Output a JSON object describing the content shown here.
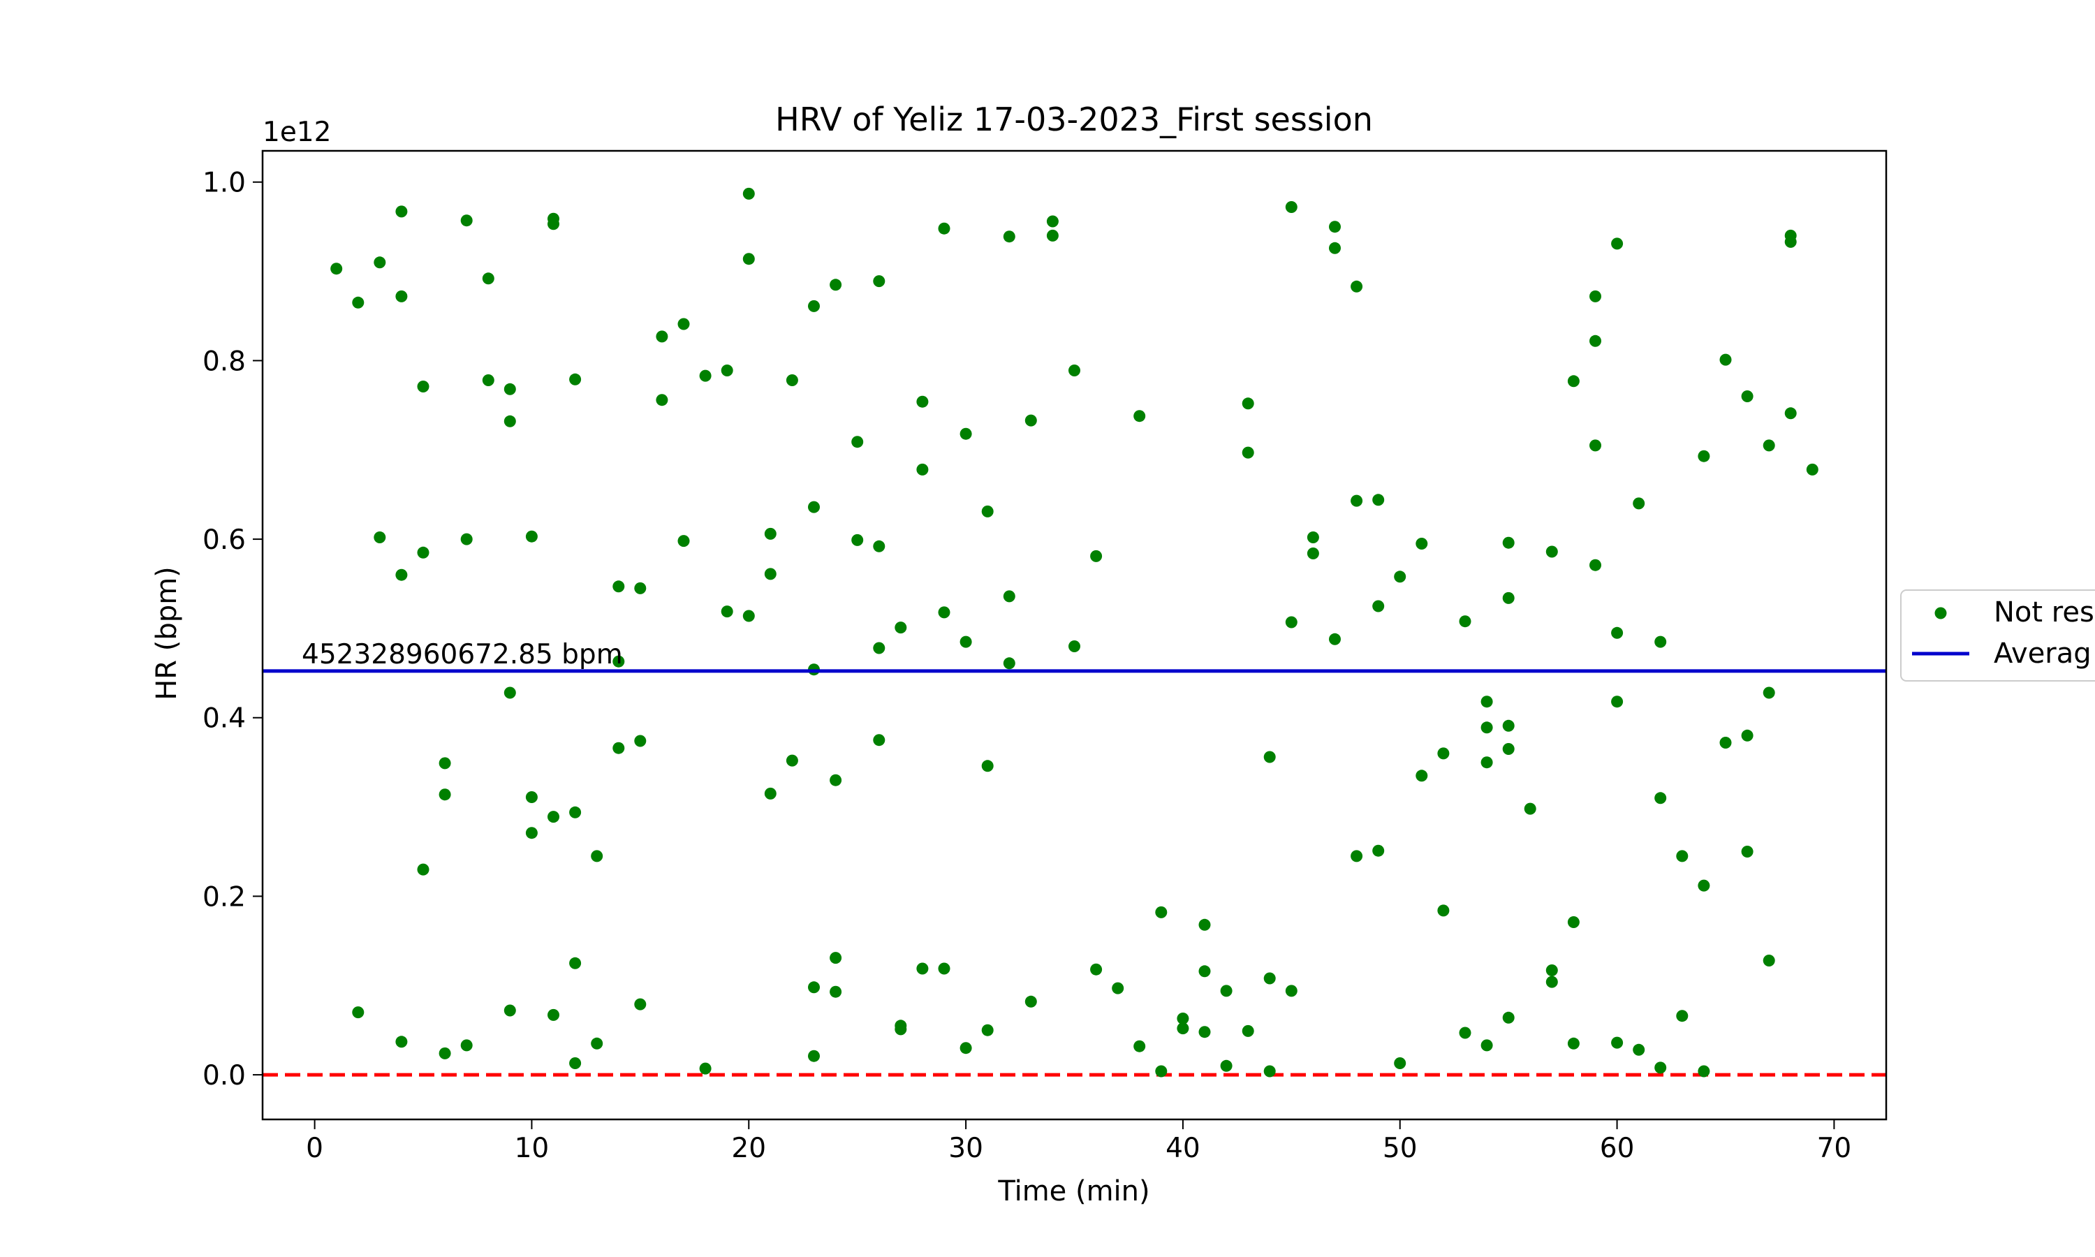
{
  "chart_data": {
    "type": "scatter",
    "title": "HRV of Yeliz 17-03-2023_First session",
    "xlabel": "Time (min)",
    "ylabel": "HR (bpm)",
    "y_offset_text": "1e12",
    "xlim": [
      -2.4,
      72.4
    ],
    "ylim": [
      -0.05,
      1.035
    ],
    "x_ticks": [
      0,
      10,
      20,
      30,
      40,
      50,
      60,
      70
    ],
    "x_tick_labels": [
      "0",
      "10",
      "20",
      "30",
      "40",
      "50",
      "60",
      "70"
    ],
    "y_ticks": [
      0.0,
      0.2,
      0.4,
      0.6,
      0.8,
      1.0
    ],
    "y_tick_labels": [
      "0.0",
      "0.2",
      "0.4",
      "0.6",
      "0.8",
      "1.0"
    ],
    "grid": false,
    "legend_placement": "center-right, outside plot (cut off by image edge)",
    "average": {
      "value": 0.45232896067285,
      "label": "452328960672.85 bpm",
      "color": "#0000cc"
    },
    "baseline": {
      "value": 0.0,
      "color": "#ff0000",
      "style": "dashed"
    },
    "series": [
      {
        "name": "Not res",
        "color": "#008000",
        "points": [
          [
            1,
            0.903
          ],
          [
            2,
            0.865
          ],
          [
            2,
            0.07
          ],
          [
            3,
            0.91
          ],
          [
            3,
            0.602
          ],
          [
            4,
            0.967
          ],
          [
            4,
            0.872
          ],
          [
            4,
            0.56
          ],
          [
            4,
            0.037
          ],
          [
            5,
            0.771
          ],
          [
            5,
            0.585
          ],
          [
            5,
            0.23
          ],
          [
            6,
            0.349
          ],
          [
            6,
            0.314
          ],
          [
            6,
            0.024
          ],
          [
            7,
            0.957
          ],
          [
            7,
            0.6
          ],
          [
            7,
            0.033
          ],
          [
            8,
            0.892
          ],
          [
            8,
            0.778
          ],
          [
            9,
            0.768
          ],
          [
            9,
            0.732
          ],
          [
            9,
            0.428
          ],
          [
            9,
            0.072
          ],
          [
            10,
            0.603
          ],
          [
            10,
            0.311
          ],
          [
            10,
            0.271
          ],
          [
            11,
            0.959
          ],
          [
            11,
            0.953
          ],
          [
            11,
            0.289
          ],
          [
            11,
            0.067
          ],
          [
            12,
            0.779
          ],
          [
            12,
            0.294
          ],
          [
            12,
            0.125
          ],
          [
            12,
            0.013
          ],
          [
            13,
            0.245
          ],
          [
            13,
            0.035
          ],
          [
            14,
            0.547
          ],
          [
            14,
            0.463
          ],
          [
            14,
            0.366
          ],
          [
            15,
            0.545
          ],
          [
            15,
            0.374
          ],
          [
            15,
            0.079
          ],
          [
            16,
            0.827
          ],
          [
            16,
            0.756
          ],
          [
            17,
            0.841
          ],
          [
            17,
            0.598
          ],
          [
            18,
            0.783
          ],
          [
            18,
            0.007
          ],
          [
            19,
            0.789
          ],
          [
            19,
            0.519
          ],
          [
            20,
            0.987
          ],
          [
            20,
            0.914
          ],
          [
            20,
            0.514
          ],
          [
            21,
            0.606
          ],
          [
            21,
            0.561
          ],
          [
            21,
            0.315
          ],
          [
            22,
            0.778
          ],
          [
            22,
            0.352
          ],
          [
            23,
            0.861
          ],
          [
            23,
            0.636
          ],
          [
            23,
            0.454
          ],
          [
            23,
            0.098
          ],
          [
            23,
            0.021
          ],
          [
            24,
            0.885
          ],
          [
            24,
            0.33
          ],
          [
            24,
            0.131
          ],
          [
            24,
            0.093
          ],
          [
            25,
            0.709
          ],
          [
            25,
            0.599
          ],
          [
            26,
            0.889
          ],
          [
            26,
            0.592
          ],
          [
            26,
            0.478
          ],
          [
            26,
            0.375
          ],
          [
            27,
            0.501
          ],
          [
            27,
            0.055
          ],
          [
            27,
            0.051
          ],
          [
            28,
            0.754
          ],
          [
            28,
            0.678
          ],
          [
            28,
            0.119
          ],
          [
            29,
            0.948
          ],
          [
            29,
            0.518
          ],
          [
            29,
            0.119
          ],
          [
            30,
            0.718
          ],
          [
            30,
            0.485
          ],
          [
            30,
            0.03
          ],
          [
            31,
            0.631
          ],
          [
            31,
            0.346
          ],
          [
            31,
            0.05
          ],
          [
            32,
            0.939
          ],
          [
            32,
            0.536
          ],
          [
            32,
            0.461
          ],
          [
            33,
            0.733
          ],
          [
            33,
            0.082
          ],
          [
            34,
            0.956
          ],
          [
            34,
            0.94
          ],
          [
            35,
            0.789
          ],
          [
            35,
            0.48
          ],
          [
            36,
            0.581
          ],
          [
            36,
            0.118
          ],
          [
            37,
            0.097
          ],
          [
            38,
            0.738
          ],
          [
            38,
            0.032
          ],
          [
            39,
            0.182
          ],
          [
            39,
            0.004
          ],
          [
            40,
            0.063
          ],
          [
            40,
            0.052
          ],
          [
            41,
            0.168
          ],
          [
            41,
            0.116
          ],
          [
            41,
            0.048
          ],
          [
            42,
            0.094
          ],
          [
            42,
            0.01
          ],
          [
            43,
            0.752
          ],
          [
            43,
            0.697
          ],
          [
            43,
            0.049
          ],
          [
            44,
            0.356
          ],
          [
            44,
            0.108
          ],
          [
            44,
            0.004
          ],
          [
            45,
            0.972
          ],
          [
            45,
            0.507
          ],
          [
            45,
            0.094
          ],
          [
            46,
            0.602
          ],
          [
            46,
            0.584
          ],
          [
            47,
            0.95
          ],
          [
            47,
            0.926
          ],
          [
            47,
            0.488
          ],
          [
            48,
            0.883
          ],
          [
            48,
            0.643
          ],
          [
            48,
            0.245
          ],
          [
            49,
            0.644
          ],
          [
            49,
            0.525
          ],
          [
            49,
            0.251
          ],
          [
            50,
            0.558
          ],
          [
            50,
            0.013
          ],
          [
            51,
            0.595
          ],
          [
            51,
            0.335
          ],
          [
            52,
            0.36
          ],
          [
            52,
            0.184
          ],
          [
            53,
            0.508
          ],
          [
            53,
            0.047
          ],
          [
            54,
            0.418
          ],
          [
            54,
            0.389
          ],
          [
            54,
            0.35
          ],
          [
            54,
            0.033
          ],
          [
            55,
            0.596
          ],
          [
            55,
            0.534
          ],
          [
            55,
            0.391
          ],
          [
            55,
            0.365
          ],
          [
            55,
            0.064
          ],
          [
            56,
            0.298
          ],
          [
            57,
            0.586
          ],
          [
            57,
            0.117
          ],
          [
            57,
            0.104
          ],
          [
            58,
            0.777
          ],
          [
            58,
            0.171
          ],
          [
            58,
            0.035
          ],
          [
            59,
            0.872
          ],
          [
            59,
            0.822
          ],
          [
            59,
            0.705
          ],
          [
            59,
            0.571
          ],
          [
            60,
            0.931
          ],
          [
            60,
            0.495
          ],
          [
            60,
            0.418
          ],
          [
            60,
            0.036
          ],
          [
            61,
            0.64
          ],
          [
            61,
            0.028
          ],
          [
            62,
            0.485
          ],
          [
            62,
            0.31
          ],
          [
            62,
            0.008
          ],
          [
            63,
            0.245
          ],
          [
            63,
            0.066
          ],
          [
            64,
            0.693
          ],
          [
            64,
            0.212
          ],
          [
            64,
            0.004
          ],
          [
            65,
            0.801
          ],
          [
            65,
            0.372
          ],
          [
            66,
            0.76
          ],
          [
            66,
            0.38
          ],
          [
            66,
            0.25
          ],
          [
            67,
            0.705
          ],
          [
            67,
            0.428
          ],
          [
            67,
            0.128
          ],
          [
            68,
            0.94
          ],
          [
            68,
            0.933
          ],
          [
            68,
            0.741
          ],
          [
            69,
            0.678
          ]
        ]
      },
      {
        "name": "Averag",
        "color": "#0000cc",
        "kind": "line"
      }
    ]
  }
}
